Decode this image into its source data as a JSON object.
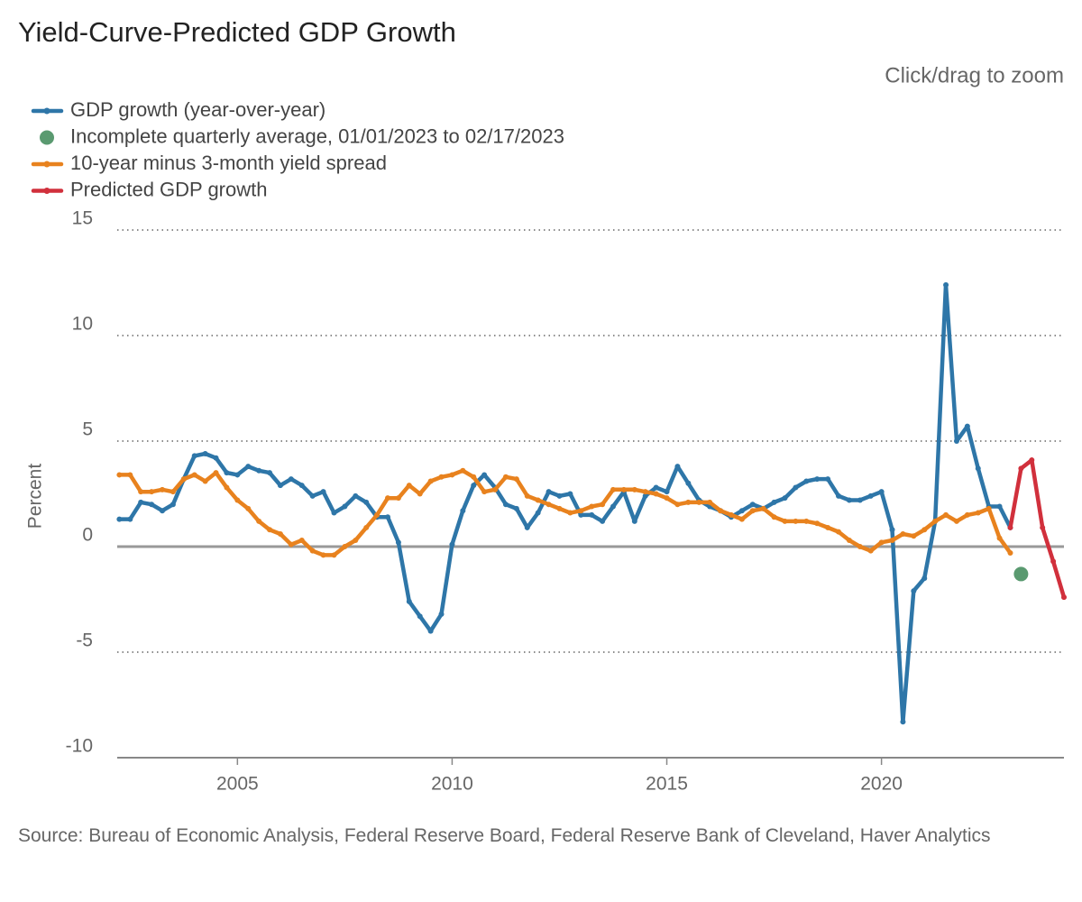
{
  "chart_data": {
    "type": "line",
    "title": "Yield-Curve-Predicted GDP Growth",
    "zoom_hint": "Click/drag to zoom",
    "y_label": "Percent",
    "source": "Source: Bureau of Economic Analysis, Federal Reserve Board, Federal Reserve Bank of Cleveland, Haver Analytics",
    "legend": "top-left",
    "xlim": [
      2002.2,
      2024.25
    ],
    "xticks": [
      2005,
      2010,
      2015,
      2020
    ],
    "ylim": [
      -10,
      15
    ],
    "yticks": [
      -10,
      -5,
      0,
      5,
      10,
      15
    ],
    "grid": true,
    "x": [
      2002.25,
      2002.5,
      2002.75,
      2003,
      2003.25,
      2003.5,
      2003.75,
      2004,
      2004.25,
      2004.5,
      2004.75,
      2005,
      2005.25,
      2005.5,
      2005.75,
      2006,
      2006.25,
      2006.5,
      2006.75,
      2007,
      2007.25,
      2007.5,
      2007.75,
      2008,
      2008.25,
      2008.5,
      2008.75,
      2009,
      2009.25,
      2009.5,
      2009.75,
      2010,
      2010.25,
      2010.5,
      2010.75,
      2011,
      2011.25,
      2011.5,
      2011.75,
      2012,
      2012.25,
      2012.5,
      2012.75,
      2013,
      2013.25,
      2013.5,
      2013.75,
      2014,
      2014.25,
      2014.5,
      2014.75,
      2015,
      2015.25,
      2015.5,
      2015.75,
      2016,
      2016.25,
      2016.5,
      2016.75,
      2017,
      2017.25,
      2017.5,
      2017.75,
      2018,
      2018.25,
      2018.5,
      2018.75,
      2019,
      2019.25,
      2019.5,
      2019.75,
      2020,
      2020.25,
      2020.5,
      2020.75,
      2021,
      2021.25,
      2021.5,
      2021.75,
      2022,
      2022.25,
      2022.5,
      2022.75,
      2023
    ],
    "series": [
      {
        "name": "GDP growth (year-over-year)",
        "color": "#2e76a8",
        "mode": "lines",
        "values": [
          1.3,
          1.3,
          2.1,
          2.0,
          1.7,
          2.0,
          3.2,
          4.3,
          4.4,
          4.2,
          3.5,
          3.4,
          3.8,
          3.6,
          3.5,
          2.9,
          3.2,
          2.9,
          2.4,
          2.6,
          1.6,
          1.9,
          2.4,
          2.1,
          1.4,
          1.4,
          0.2,
          -2.6,
          -3.3,
          -4.0,
          -3.2,
          0.1,
          1.7,
          2.9,
          3.4,
          2.8,
          2.0,
          1.8,
          0.9,
          1.6,
          2.6,
          2.4,
          2.5,
          1.5,
          1.5,
          1.2,
          1.9,
          2.6,
          1.2,
          2.4,
          2.8,
          2.6,
          3.8,
          3.0,
          2.2,
          1.9,
          1.7,
          1.4,
          1.7,
          2.0,
          1.8,
          2.1,
          2.3,
          2.8,
          3.1,
          3.2,
          3.2,
          2.4,
          2.2,
          2.2,
          2.4,
          2.6,
          0.8,
          -8.3,
          -2.1,
          -1.5,
          1.2,
          12.4,
          5.0,
          5.7,
          3.7,
          1.9,
          1.9,
          0.9
        ]
      },
      {
        "name": "Incomplete quarterly average, 01/01/2023 to 02/17/2023",
        "color": "#5a9a70",
        "mode": "markers",
        "x": [
          2023.25
        ],
        "values": [
          -1.3
        ]
      },
      {
        "name": "10-year minus 3-month yield spread",
        "color": "#e8821e",
        "mode": "lines",
        "values": [
          3.4,
          3.4,
          2.6,
          2.6,
          2.7,
          2.6,
          3.2,
          3.4,
          3.1,
          3.5,
          2.8,
          2.2,
          1.8,
          1.2,
          0.8,
          0.6,
          0.1,
          0.3,
          -0.2,
          -0.4,
          -0.4,
          0.0,
          0.3,
          0.9,
          1.5,
          2.3,
          2.3,
          2.9,
          2.5,
          3.1,
          3.3,
          3.4,
          3.6,
          3.3,
          2.6,
          2.7,
          3.3,
          3.2,
          2.4,
          2.2,
          2.0,
          1.8,
          1.6,
          1.7,
          1.9,
          2.0,
          2.7,
          2.7,
          2.7,
          2.6,
          2.5,
          2.3,
          2.0,
          2.1,
          2.1,
          2.1,
          1.7,
          1.5,
          1.3,
          1.7,
          1.8,
          1.4,
          1.2,
          1.2,
          1.2,
          1.1,
          0.9,
          0.7,
          0.3,
          0.0,
          -0.2,
          0.2,
          0.3,
          0.6,
          0.5,
          0.8,
          1.2,
          1.5,
          1.2,
          1.5,
          1.6,
          1.8,
          0.4,
          -0.3
        ]
      },
      {
        "name": "Predicted GDP growth",
        "color": "#d1303c",
        "mode": "lines",
        "x": [
          2023,
          2023.25,
          2023.5,
          2023.75,
          2024,
          2024.25
        ],
        "values": [
          0.9,
          3.7,
          4.1,
          0.9,
          -0.7,
          -2.4
        ]
      }
    ]
  }
}
